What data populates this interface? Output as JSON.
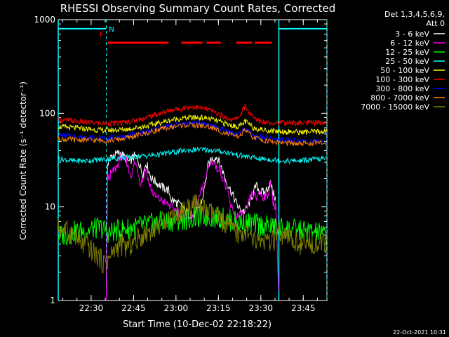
{
  "chart_data": {
    "type": "line",
    "title": "RHESSI Observing Summary Count Rates, Corrected",
    "xlabel": "Start Time (10-Dec-02 22:18:22)",
    "ylabel": "Corrected Count Rate (s⁻¹ detector⁻¹)",
    "yscale": "log",
    "ylim": [
      1,
      1000
    ],
    "xlim": [
      0,
      95
    ],
    "x_units": "minutes after 22:18:22",
    "y_ticks": [
      {
        "value": 1,
        "label": "1"
      },
      {
        "value": 10,
        "label": "10"
      },
      {
        "value": 100,
        "label": "100"
      },
      {
        "value": 1000,
        "label": "1000"
      }
    ],
    "x_ticks": [
      {
        "value": 11.63,
        "label": "22:30"
      },
      {
        "value": 26.63,
        "label": "22:45"
      },
      {
        "value": 41.63,
        "label": "23:00"
      },
      {
        "value": 56.63,
        "label": "23:15"
      },
      {
        "value": 71.63,
        "label": "23:30"
      },
      {
        "value": 86.63,
        "label": "23:45"
      }
    ],
    "legend": {
      "position": "right",
      "header": [
        "Det 1,3,4,5,6,9,",
        "Att 0"
      ]
    },
    "series": [
      {
        "name": "3 - 6 keV",
        "color": "#ffffff",
        "points": [
          [
            17,
            1
          ],
          [
            17.4,
            30
          ],
          [
            19,
            35
          ],
          [
            22,
            38
          ],
          [
            25,
            30
          ],
          [
            27,
            35
          ],
          [
            28,
            33
          ],
          [
            30,
            22
          ],
          [
            31,
            30
          ],
          [
            33,
            20
          ],
          [
            35,
            18
          ],
          [
            37,
            16
          ],
          [
            39,
            15
          ],
          [
            40,
            12
          ],
          [
            42,
            11
          ],
          [
            44,
            10
          ],
          [
            46,
            8.5
          ],
          [
            48,
            8
          ],
          [
            49,
            9
          ],
          [
            51,
            12
          ],
          [
            52,
            18
          ],
          [
            53,
            28
          ],
          [
            54.5,
            33
          ],
          [
            56,
            34
          ],
          [
            57,
            30
          ],
          [
            58,
            25
          ],
          [
            59,
            20
          ],
          [
            61,
            15
          ],
          [
            63,
            11
          ],
          [
            64,
            9.5
          ],
          [
            66,
            9
          ],
          [
            67,
            10
          ],
          [
            68,
            12
          ],
          [
            69,
            14
          ],
          [
            70,
            17
          ],
          [
            71,
            15
          ],
          [
            73,
            14
          ],
          [
            74,
            16
          ],
          [
            75,
            18
          ],
          [
            76,
            14
          ],
          [
            77,
            12
          ]
        ]
      },
      {
        "name": "6 - 12 keV",
        "color": "#ff00ff",
        "points": [
          [
            17,
            1
          ],
          [
            17.4,
            20
          ],
          [
            19,
            23
          ],
          [
            20,
            25
          ],
          [
            21,
            28
          ],
          [
            22,
            35
          ],
          [
            23,
            30
          ],
          [
            24,
            33
          ],
          [
            25,
            24
          ],
          [
            26,
            22
          ],
          [
            27,
            30
          ],
          [
            28,
            26
          ],
          [
            29,
            18
          ],
          [
            30,
            20
          ],
          [
            31,
            26
          ],
          [
            32,
            18
          ],
          [
            34,
            13
          ],
          [
            36,
            12
          ],
          [
            38,
            11
          ],
          [
            40,
            10
          ],
          [
            42,
            9
          ],
          [
            43,
            8.5
          ],
          [
            45,
            8
          ],
          [
            46,
            7.5
          ],
          [
            47,
            8
          ],
          [
            48,
            9
          ],
          [
            50,
            13
          ],
          [
            52,
            19
          ],
          [
            53,
            26
          ],
          [
            54,
            30
          ],
          [
            55,
            31
          ],
          [
            56,
            25
          ],
          [
            57,
            27
          ],
          [
            58,
            21
          ],
          [
            60,
            14
          ],
          [
            61,
            10
          ],
          [
            62,
            9
          ],
          [
            63,
            8
          ],
          [
            64,
            8
          ],
          [
            66,
            8.5
          ],
          [
            67,
            10
          ],
          [
            68,
            13
          ],
          [
            69,
            14
          ],
          [
            70,
            12
          ],
          [
            71,
            15
          ],
          [
            72,
            13
          ],
          [
            74,
            13
          ],
          [
            75,
            18
          ],
          [
            76,
            11
          ],
          [
            77,
            10
          ],
          [
            78,
            1
          ]
        ]
      },
      {
        "name": "12 - 25 keV",
        "color": "#00ff00",
        "points": [
          [
            0,
            5
          ],
          [
            3,
            5
          ],
          [
            6,
            5.5
          ],
          [
            9,
            5.5
          ],
          [
            12,
            5.8
          ],
          [
            15,
            6
          ],
          [
            18,
            5.3
          ],
          [
            22,
            5.7
          ],
          [
            26,
            6
          ],
          [
            30,
            6.3
          ],
          [
            34,
            6.7
          ],
          [
            38,
            7
          ],
          [
            42,
            7.2
          ],
          [
            46,
            7.5
          ],
          [
            50,
            7.8
          ],
          [
            54,
            7.8
          ],
          [
            58,
            7.6
          ],
          [
            62,
            7
          ],
          [
            66,
            6.8
          ],
          [
            70,
            6.5
          ],
          [
            74,
            6.2
          ],
          [
            78,
            6
          ],
          [
            82,
            5.8
          ],
          [
            86,
            5.6
          ],
          [
            90,
            5.4
          ],
          [
            95,
            5
          ]
        ]
      },
      {
        "name": "25 - 50 keV",
        "color": "#00ffff",
        "points": [
          [
            0,
            33
          ],
          [
            5,
            31
          ],
          [
            10,
            31
          ],
          [
            15,
            32
          ],
          [
            20,
            33
          ],
          [
            25,
            34
          ],
          [
            30,
            35
          ],
          [
            35,
            36
          ],
          [
            40,
            38
          ],
          [
            45,
            40
          ],
          [
            50,
            41
          ],
          [
            55,
            40
          ],
          [
            60,
            38
          ],
          [
            65,
            35
          ],
          [
            70,
            33
          ],
          [
            75,
            32
          ],
          [
            80,
            31
          ],
          [
            85,
            31
          ],
          [
            90,
            32
          ],
          [
            95,
            33
          ]
        ]
      },
      {
        "name": "50 - 100 keV",
        "color": "#ffff00",
        "points": [
          [
            0,
            72
          ],
          [
            5,
            70
          ],
          [
            10,
            68
          ],
          [
            15,
            66
          ],
          [
            20,
            66
          ],
          [
            25,
            68
          ],
          [
            30,
            72
          ],
          [
            35,
            78
          ],
          [
            40,
            85
          ],
          [
            45,
            89
          ],
          [
            50,
            90
          ],
          [
            53,
            88
          ],
          [
            56,
            83
          ],
          [
            60,
            76
          ],
          [
            63,
            72
          ],
          [
            65,
            75
          ],
          [
            66,
            82
          ],
          [
            67,
            78
          ],
          [
            69,
            70
          ],
          [
            72,
            67
          ],
          [
            75,
            65
          ],
          [
            80,
            64
          ],
          [
            85,
            63
          ],
          [
            90,
            63
          ],
          [
            95,
            64
          ]
        ]
      },
      {
        "name": "100 - 300 keV",
        "color": "#ff0000",
        "points": [
          [
            0,
            85
          ],
          [
            5,
            83
          ],
          [
            10,
            80
          ],
          [
            15,
            78
          ],
          [
            20,
            78
          ],
          [
            25,
            81
          ],
          [
            30,
            88
          ],
          [
            35,
            98
          ],
          [
            40,
            108
          ],
          [
            45,
            115
          ],
          [
            48,
            117
          ],
          [
            52,
            112
          ],
          [
            56,
            101
          ],
          [
            59,
            90
          ],
          [
            62,
            85
          ],
          [
            64,
            92
          ],
          [
            65,
            105
          ],
          [
            66,
            118
          ],
          [
            67,
            108
          ],
          [
            69,
            88
          ],
          [
            72,
            82
          ],
          [
            75,
            80
          ],
          [
            80,
            79
          ],
          [
            85,
            79
          ],
          [
            90,
            79
          ],
          [
            95,
            80
          ]
        ]
      },
      {
        "name": "300 - 800 keV",
        "color": "#0000ff",
        "points": [
          [
            0,
            58
          ],
          [
            5,
            57
          ],
          [
            10,
            55
          ],
          [
            15,
            54
          ],
          [
            20,
            55
          ],
          [
            25,
            58
          ],
          [
            30,
            62
          ],
          [
            35,
            69
          ],
          [
            40,
            74
          ],
          [
            45,
            78
          ],
          [
            50,
            78
          ],
          [
            53,
            76
          ],
          [
            56,
            71
          ],
          [
            60,
            63
          ],
          [
            63,
            60
          ],
          [
            65,
            63
          ],
          [
            66,
            70
          ],
          [
            67,
            65
          ],
          [
            69,
            58
          ],
          [
            72,
            55
          ],
          [
            75,
            53
          ],
          [
            80,
            52
          ],
          [
            85,
            51
          ],
          [
            90,
            50
          ],
          [
            95,
            50
          ]
        ]
      },
      {
        "name": "800 - 7000 keV",
        "color": "#ff8000",
        "points": [
          [
            0,
            53
          ],
          [
            5,
            52
          ],
          [
            10,
            52
          ],
          [
            15,
            51
          ],
          [
            20,
            52
          ],
          [
            25,
            55
          ],
          [
            30,
            60
          ],
          [
            35,
            66
          ],
          [
            40,
            71
          ],
          [
            45,
            75
          ],
          [
            50,
            74
          ],
          [
            53,
            72
          ],
          [
            56,
            67
          ],
          [
            60,
            60
          ],
          [
            63,
            56
          ],
          [
            65,
            60
          ],
          [
            66,
            67
          ],
          [
            67,
            62
          ],
          [
            69,
            55
          ],
          [
            72,
            52
          ],
          [
            75,
            50
          ],
          [
            80,
            48
          ],
          [
            85,
            47
          ],
          [
            90,
            48
          ],
          [
            95,
            48
          ]
        ]
      },
      {
        "name": "7000 - 15000 keV",
        "color": "#808000",
        "points": [
          [
            0,
            6
          ],
          [
            3,
            5.5
          ],
          [
            6,
            5
          ],
          [
            8,
            3.8
          ],
          [
            10,
            4
          ],
          [
            12,
            3.3
          ],
          [
            14,
            3
          ],
          [
            16,
            2.5
          ],
          [
            18,
            2.8
          ],
          [
            20,
            3.5
          ],
          [
            22,
            4
          ],
          [
            24,
            3.7
          ],
          [
            26,
            4
          ],
          [
            28,
            4.5
          ],
          [
            30,
            5
          ],
          [
            32,
            5.5
          ],
          [
            34,
            6
          ],
          [
            36,
            6.5
          ],
          [
            38,
            7.5
          ],
          [
            40,
            8
          ],
          [
            42,
            8.5
          ],
          [
            44,
            9
          ],
          [
            46,
            10
          ],
          [
            48,
            10.5
          ],
          [
            50,
            10
          ],
          [
            52,
            9
          ],
          [
            54,
            8.5
          ],
          [
            56,
            8
          ],
          [
            58,
            7
          ],
          [
            60,
            6.5
          ],
          [
            62,
            5.5
          ],
          [
            64,
            5
          ],
          [
            66,
            5.5
          ],
          [
            68,
            4.5
          ],
          [
            70,
            4.2
          ],
          [
            72,
            4.5
          ],
          [
            74,
            4
          ],
          [
            76,
            4.3
          ],
          [
            78,
            5
          ],
          [
            80,
            4.5
          ],
          [
            82,
            4.5
          ],
          [
            84,
            4.2
          ],
          [
            86,
            4
          ],
          [
            88,
            4
          ],
          [
            90,
            4.2
          ],
          [
            92,
            4
          ],
          [
            95,
            4
          ]
        ]
      }
    ],
    "annotations": {
      "flag_labels": [
        "F",
        "N"
      ],
      "night_intervals": [
        [
          0,
          17
        ],
        [
          78,
          95
        ]
      ],
      "flare_segments": [
        [
          17.5,
          39
        ],
        [
          43.5,
          51
        ],
        [
          52.5,
          57.5
        ],
        [
          63,
          68.5
        ],
        [
          69.5,
          75.5
        ]
      ],
      "flag_level": 800,
      "footer_timestamp": "22-Oct-2021 10:31"
    }
  }
}
